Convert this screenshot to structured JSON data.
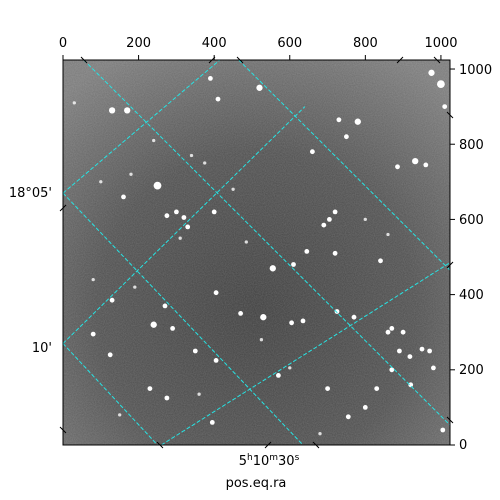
{
  "figure": {
    "axis_label_bottom": "pos.eq.ra",
    "pixel_x_ticks": [
      "0",
      "200",
      "400",
      "600",
      "800",
      "1000"
    ],
    "pixel_y_ticks": [
      "0",
      "200",
      "400",
      "600",
      "800",
      "1000"
    ],
    "dec_labels": [
      "18°05'",
      "10'"
    ],
    "ra_label": {
      "h": "5",
      "hs": "h",
      "m": "10",
      "ms": "m",
      "s": "30",
      "ss": "s"
    },
    "colors": {
      "grid": "#27e3e3",
      "frame": "#000000",
      "sky": "#5a5a5a",
      "stars": "#ffffff"
    }
  },
  "chart_data": {
    "type": "scatter",
    "title": "",
    "xlabel": "pos.eq.ra",
    "ylabel": "",
    "xlim": [
      0,
      1024
    ],
    "ylim": [
      0,
      1024
    ],
    "xticks": [
      0,
      200,
      400,
      600,
      800,
      1000
    ],
    "yticks": [
      0,
      200,
      400,
      600,
      800,
      1000
    ],
    "grid": true,
    "coordinate_labels": {
      "dec": [
        "18°05'",
        "10'"
      ],
      "ra": [
        "5h10m30s"
      ]
    },
    "stars": {
      "x": [
        1000,
        520,
        130,
        170,
        390,
        410,
        780,
        730,
        750,
        885,
        932,
        960,
        1010,
        975,
        250,
        300,
        320,
        160,
        275,
        330,
        400,
        485,
        555,
        720,
        705,
        645,
        610,
        720,
        690,
        840,
        860,
        900,
        970,
        130,
        240,
        270,
        290,
        350,
        405,
        405,
        470,
        530,
        605,
        725,
        770,
        870,
        890,
        918,
        950,
        920,
        980,
        80,
        125,
        230,
        275,
        395,
        570,
        635,
        700,
        755,
        800,
        830,
        870,
        1005,
        660,
        340,
        240,
        100,
        180,
        450,
        375,
        310,
        525,
        190,
        800,
        80,
        150,
        360,
        600,
        680,
        30,
        860
      ],
      "y": [
        960,
        950,
        890,
        890,
        975,
        920,
        860,
        865,
        820,
        740,
        755,
        745,
        900,
        990,
        690,
        620,
        605,
        660,
        610,
        580,
        620,
        540,
        470,
        620,
        600,
        515,
        480,
        510,
        585,
        490,
        300,
        300,
        250,
        385,
        320,
        370,
        310,
        250,
        225,
        405,
        350,
        340,
        325,
        355,
        340,
        310,
        250,
        235,
        255,
        160,
        205,
        295,
        240,
        150,
        125,
        60,
        185,
        330,
        150,
        75,
        100,
        150,
        200,
        40,
        780,
        770,
        810,
        700,
        720,
        680,
        750,
        550,
        280,
        420,
        600,
        440,
        80,
        135,
        205,
        30,
        910,
        560
      ],
      "brightness": [
        4,
        3,
        3,
        3,
        2,
        2,
        3,
        2,
        2,
        2,
        3,
        2,
        2,
        3,
        4,
        2,
        2,
        2,
        2,
        2,
        2,
        1,
        3,
        2,
        2,
        2,
        2,
        2,
        2,
        2,
        2,
        2,
        2,
        2,
        3,
        2,
        2,
        2,
        2,
        2,
        2,
        3,
        2,
        2,
        2,
        2,
        2,
        2,
        2,
        2,
        2,
        2,
        2,
        2,
        2,
        2,
        2,
        2,
        2,
        2,
        2,
        2,
        2,
        2,
        2,
        1,
        1,
        1,
        1,
        1,
        1,
        1,
        1,
        1,
        1,
        1,
        1,
        1,
        1,
        1,
        1,
        1
      ]
    },
    "grid_lines": {
      "ra": [
        [
          [
            55,
            1024
          ],
          [
            1024,
            53
          ]
        ],
        [
          [
            465,
            1024
          ],
          [
            1024,
            465
          ]
        ],
        [
          [
            0,
            270
          ],
          [
            640,
            900
          ]
        ]
      ],
      "dec": [
        [
          [
            0,
            670
          ],
          [
            415,
            1024
          ]
        ],
        [
          [
            0,
            270
          ],
          [
            250,
            0
          ]
        ],
        [
          [
            0,
            670
          ],
          [
            635,
            0
          ]
        ],
        [
          [
            260,
            0
          ],
          [
            1024,
            485
          ]
        ]
      ]
    }
  }
}
